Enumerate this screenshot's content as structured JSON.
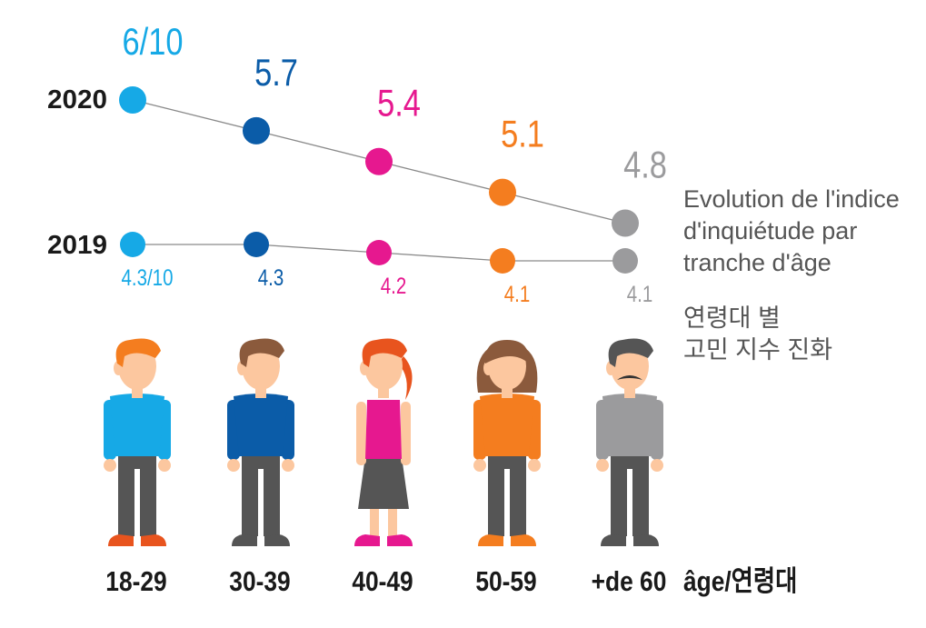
{
  "chart_data": {
    "type": "line",
    "categories": [
      "18-29",
      "30-39",
      "40-49",
      "50-59",
      "+de 60"
    ],
    "series": [
      {
        "name": "2020",
        "values": [
          6.0,
          5.7,
          5.4,
          5.1,
          4.8
        ],
        "labels": [
          "6/10",
          "5.7",
          "5.4",
          "5.1",
          "4.8"
        ]
      },
      {
        "name": "2019",
        "values": [
          4.3,
          4.3,
          4.2,
          4.1,
          4.1
        ],
        "labels": [
          "4.3/10",
          "4.3",
          "4.2",
          "4.1",
          "4.1"
        ]
      }
    ],
    "xlabel": "âge/연령대",
    "category_colors": [
      "#16a9e6",
      "#0b5ca8",
      "#e6188f",
      "#f47d1f",
      "#9b9b9d"
    ]
  },
  "description": {
    "fr": [
      "Evolution de l'indice",
      "d'inquiétude par",
      "tranche d'âge"
    ],
    "ko": [
      "연령대 별",
      "고민 지수 진화"
    ]
  },
  "figures": [
    {
      "name": "man-18-29",
      "hair": "#f47d1f",
      "shirt": "#16a9e6",
      "pants": "#555555",
      "shoes": "#e8541e",
      "hair_style": "short"
    },
    {
      "name": "man-30-39",
      "hair": "#8b5a3c",
      "shirt": "#0b5ca8",
      "pants": "#555555",
      "shoes": "#555555",
      "hair_style": "short"
    },
    {
      "name": "woman-40-49",
      "hair": "#e8541e",
      "shirt": "#e6188f",
      "pants": "#555555",
      "shoes": "#e6188f",
      "hair_style": "ponytail",
      "skirt": true
    },
    {
      "name": "woman-50-59",
      "hair": "#8b5a3c",
      "shirt": "#f47d1f",
      "pants": "#555555",
      "shoes": "#f47d1f",
      "hair_style": "bob"
    },
    {
      "name": "man-60-plus",
      "hair": "#555555",
      "shirt": "#9b9b9d",
      "pants": "#555555",
      "shoes": "#555555",
      "hair_style": "short",
      "mustache": true
    }
  ],
  "colors": {
    "line": "#8a8a8a",
    "text_dark": "#1a1a1a",
    "skin": "#fcc79f"
  }
}
